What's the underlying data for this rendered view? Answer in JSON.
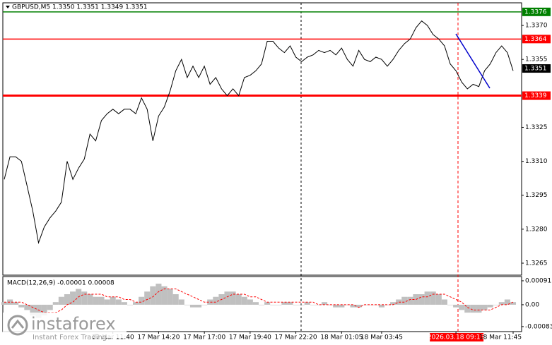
{
  "chart_data": [
    {
      "type": "line",
      "title": "GBPUSD,M5 1.3350 1.3351 1.3349 1.3351",
      "color": "#000000",
      "categories": [
        null,
        null,
        null,
        null,
        null,
        null,
        null,
        null,
        null,
        null,
        null,
        null,
        null,
        null,
        null,
        null,
        null,
        null,
        null,
        "17 Mar 11:40",
        null,
        null,
        null,
        null,
        null,
        null,
        null,
        "17 Mar 14:20",
        null,
        null,
        null,
        null,
        null,
        null,
        null,
        "17 Mar 17:00",
        null,
        null,
        null,
        null,
        null,
        null,
        null,
        "17 Mar 19:40",
        null,
        null,
        null,
        null,
        null,
        null,
        null,
        "17 Mar 22:20",
        null,
        null,
        null,
        null,
        null,
        null,
        null,
        "18 Mar 01:05",
        null,
        null,
        null,
        null,
        null,
        null,
        "18 Mar 03:45",
        null,
        null,
        null,
        null,
        null,
        null,
        null,
        null,
        null,
        null,
        null,
        null,
        "2026.03.18 09:15",
        null,
        null,
        null,
        null,
        null,
        null,
        null,
        null,
        null,
        "18 Mar 11:45"
      ],
      "values": [
        1.3302,
        1.3312,
        1.3312,
        1.331,
        1.3299,
        1.3288,
        1.3274,
        1.3281,
        1.3285,
        1.3288,
        1.3292,
        1.331,
        1.3302,
        1.3307,
        1.3311,
        1.3322,
        1.3319,
        1.3328,
        1.3331,
        1.3333,
        1.3331,
        1.3333,
        1.3333,
        1.3331,
        1.3338,
        1.3333,
        1.3319,
        1.333,
        1.3334,
        1.3341,
        1.335,
        1.3355,
        1.3347,
        1.3352,
        1.3347,
        1.3352,
        1.3344,
        1.3347,
        1.3342,
        1.3339,
        1.3342,
        1.3339,
        1.3347,
        1.3348,
        1.335,
        1.3353,
        1.3363,
        1.3363,
        1.336,
        1.3358,
        1.3361,
        1.3356,
        1.3354,
        1.3356,
        1.3357,
        1.3359,
        1.3358,
        1.3359,
        1.3357,
        1.336,
        1.3355,
        1.3352,
        1.3359,
        1.3355,
        1.3354,
        1.3356,
        1.3355,
        1.3352,
        1.3355,
        1.3359,
        1.3362,
        1.3364,
        1.3369,
        1.3372,
        1.337,
        1.3366,
        1.3364,
        1.3361,
        1.3353,
        1.335,
        1.3345,
        1.3342,
        1.3344,
        1.3343,
        1.335,
        1.3353,
        1.3358,
        1.3361,
        1.3358,
        1.335
      ],
      "ylim": [
        1.32597,
        1.338
      ],
      "yticks": [
        {
          "value": 1.337,
          "label": "1.3370"
        },
        1.3355,
        1.3325,
        {
          "value": 1.331,
          "label": "1.3310"
        },
        1.3295,
        {
          "value": 1.328,
          "label": "1.3280"
        },
        1.3265
      ],
      "levels": [
        {
          "value": 1.3376,
          "color": "#008000"
        },
        {
          "value": 1.3364,
          "color": "#ff0000"
        },
        {
          "value": 1.3339,
          "color": "#ff0000"
        }
      ],
      "last_price": 1.3351,
      "watermark": {
        "brand": "instaforex",
        "tagline": "Instant Forex Trading"
      }
    },
    {
      "type": "macd",
      "title": "MACD(12,26,9) -0.00001 0.00008",
      "histogram": {
        "color": "#c0c0c0",
        "values": [
          0.0001,
          0.0002,
          0.0001,
          -0.0001,
          -0.0002,
          -0.0004,
          -0.0005,
          -0.0004,
          -0.0002,
          0.0001,
          0.0003,
          0.0004,
          0.0005,
          0.0006,
          0.0005,
          0.0004,
          0.0003,
          0.0003,
          0.0002,
          0.0003,
          0.0002,
          0.0001,
          0,
          0.0001,
          0.0003,
          0.0005,
          0.0007,
          0.0008,
          0.0007,
          0.0006,
          0.0004,
          0.0002,
          0,
          -0.0001,
          -0.0001,
          0,
          0.0002,
          0.0003,
          0.0004,
          0.0005,
          0.0005,
          0.0004,
          0.0003,
          0.0002,
          0.0001,
          0,
          0.0001,
          0,
          0,
          0.0001,
          0.0001,
          0,
          0,
          0.0001,
          0,
          0,
          0.0001,
          0,
          -0.0001,
          -0.0001,
          0,
          -0.0001,
          -0.0001,
          0,
          0,
          0,
          -0.0001,
          0,
          0.0001,
          0.0002,
          0.0003,
          0.0003,
          0.0004,
          0.0004,
          0.0005,
          0.0005,
          0.0004,
          0.0002,
          0,
          -0.0001,
          -0.0002,
          -0.0003,
          -0.0003,
          -0.0003,
          -0.0002,
          -0.0001,
          0,
          0.0001,
          0.0002,
          0.0001
        ]
      },
      "signal": {
        "color": "#ff0000",
        "values": [
          0.0001,
          0.0001,
          0.0001,
          0.0001,
          0,
          -0.0001,
          -0.0002,
          -0.0003,
          -0.0003,
          -0.0003,
          -0.0002,
          0,
          0.0001,
          0.0003,
          0.0004,
          0.0004,
          0.0004,
          0.0004,
          0.0003,
          0.0003,
          0.0003,
          0.0002,
          0.0002,
          0.0001,
          0.0001,
          0.0002,
          0.0003,
          0.0005,
          0.0006,
          0.0006,
          0.0006,
          0.0005,
          0.0004,
          0.0003,
          0.0002,
          0.0001,
          0.0001,
          0.0001,
          0.0002,
          0.0003,
          0.0004,
          0.0004,
          0.0004,
          0.0003,
          0.0003,
          0.0002,
          0.0001,
          0.0001,
          0.0001,
          0.0001,
          0.0001,
          0.0001,
          0.0001,
          0.0001,
          0.0001,
          0,
          0,
          0,
          0,
          0,
          0,
          0,
          -0.0001,
          0,
          0,
          0,
          0,
          0,
          0,
          0.0001,
          0.0001,
          0.0002,
          0.0002,
          0.0003,
          0.0003,
          0.0004,
          0.0004,
          0.0004,
          0.0003,
          0.0002,
          0.0001,
          -0.0001,
          -0.0002,
          -0.0002,
          -0.0002,
          -0.0002,
          -0.0001,
          0,
          0,
          0.0001
        ]
      },
      "ylim": [
        -0.00102,
        0.00107
      ],
      "yticks": [
        0.00091,
        {
          "value": 0,
          "label": "0.00"
        },
        -0.00083
      ]
    }
  ]
}
